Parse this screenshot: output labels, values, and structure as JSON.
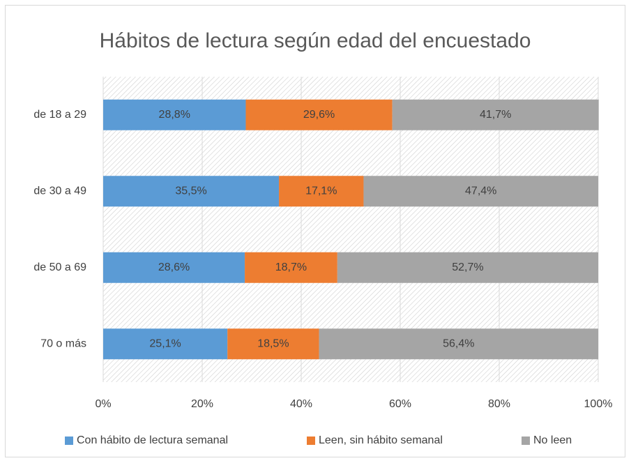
{
  "chart_data": {
    "type": "stacked_barh",
    "title": "Hábitos de lectura según edad del encuestado",
    "categories": [
      "de 18 a 29",
      "de 30 a 49",
      "de 50 a 69",
      "70 o más"
    ],
    "series": [
      {
        "name": "Con hábito de lectura semanal",
        "color": "#5b9bd5",
        "values": [
          28.8,
          35.5,
          28.6,
          25.1
        ],
        "value_labels": [
          "28,8%",
          "35,5%",
          "28,6%",
          "25,1%"
        ]
      },
      {
        "name": "Leen, sin hábito semanal",
        "color": "#ed7d31",
        "values": [
          29.6,
          17.1,
          18.7,
          18.5
        ],
        "value_labels": [
          "29,6%",
          "17,1%",
          "18,7%",
          "18,5%"
        ]
      },
      {
        "name": "No leen",
        "color": "#a5a5a5",
        "values": [
          41.7,
          47.4,
          52.7,
          56.4
        ],
        "value_labels": [
          "41,7%",
          "47,4%",
          "52,7%",
          "56,4%"
        ]
      }
    ],
    "xlim": [
      0,
      100
    ],
    "xticks": [
      {
        "value": 0,
        "label": "0%"
      },
      {
        "value": 20,
        "label": "20%"
      },
      {
        "value": 40,
        "label": "40%"
      },
      {
        "value": 60,
        "label": "60%"
      },
      {
        "value": 80,
        "label": "80%"
      },
      {
        "value": 100,
        "label": "100%"
      }
    ],
    "grid": true,
    "legend": "bottom"
  }
}
